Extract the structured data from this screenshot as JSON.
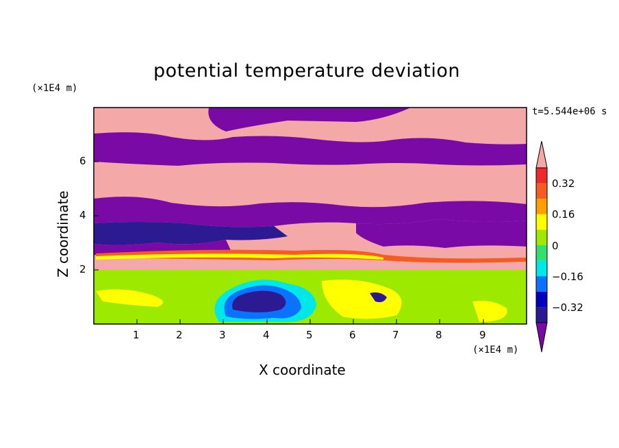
{
  "chart_data": {
    "type": "heatmap",
    "title": "potential temperature deviation",
    "xlabel": "X coordinate",
    "ylabel": "Z coordinate",
    "x_unit": "(×1E4 m)",
    "z_unit": "(×1E4 m)",
    "time_label": "t=5.544e+06 s",
    "xlim": [
      0,
      10
    ],
    "ylim": [
      0,
      8
    ],
    "x_ticks": [
      "1",
      "2",
      "3",
      "4",
      "5",
      "6",
      "7",
      "8",
      "9"
    ],
    "y_ticks": [
      "2",
      "4",
      "6"
    ],
    "colorbar": {
      "tick_labels": [
        "0.32",
        "0.16",
        "0",
        "−0.16",
        "−0.32"
      ],
      "levels": [
        {
          "color": "#f4a9a8"
        },
        {
          "color": "#f02a2a"
        },
        {
          "color": "#f45c21"
        },
        {
          "color": "#ff9f00"
        },
        {
          "color": "#ffff00"
        },
        {
          "color": "#9ee900"
        },
        {
          "color": "#32e06f"
        },
        {
          "color": "#00e7e7"
        },
        {
          "color": "#0a72ff"
        },
        {
          "color": "#0000c0"
        },
        {
          "color": "#2c1a93"
        },
        {
          "color": "#7a0aa6"
        }
      ]
    },
    "bands": [
      {
        "z_top": 8.0,
        "z_bottom": 6.9,
        "level": "pink"
      },
      {
        "z_top": 6.9,
        "z_bottom": 5.9,
        "level": "purple"
      },
      {
        "z_top": 5.9,
        "z_bottom": 4.4,
        "level": "pink"
      },
      {
        "z_top": 4.4,
        "z_bottom": 3.7,
        "level": "purple"
      },
      {
        "z_top": 3.7,
        "z_bottom": 2.9,
        "level": "mixed"
      },
      {
        "z_top": 2.9,
        "z_bottom": 2.0,
        "level": "pink/red"
      },
      {
        "z_top": 2.0,
        "z_bottom": 0.0,
        "level": "green"
      }
    ]
  }
}
